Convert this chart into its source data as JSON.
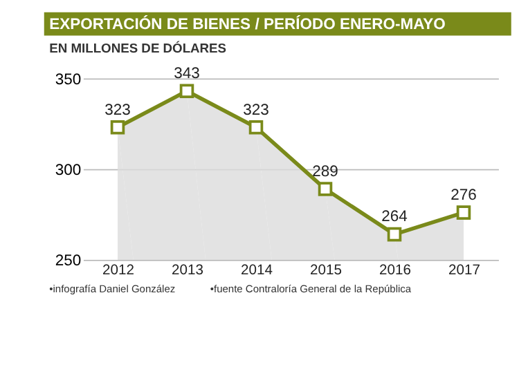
{
  "chart_data": {
    "type": "area",
    "title": "EXPORTACIÓN DE BIENES / PERÍODO ENERO-MAYO",
    "subtitle": "EN MILLONES DE DÓLARES",
    "categories": [
      "2012",
      "2013",
      "2014",
      "2015",
      "2016",
      "2017"
    ],
    "series": [
      {
        "color": "#7a8a1a",
        "values": [
          323,
          343,
          323,
          289,
          264,
          276
        ]
      }
    ],
    "ylim": [
      250,
      350
    ],
    "yticks": [
      250,
      300,
      350
    ],
    "grid": "y",
    "marker": "square",
    "data_labels": true,
    "annotations": [
      "•infografía Daniel González",
      "•fuente Contraloría General de la República"
    ]
  }
}
